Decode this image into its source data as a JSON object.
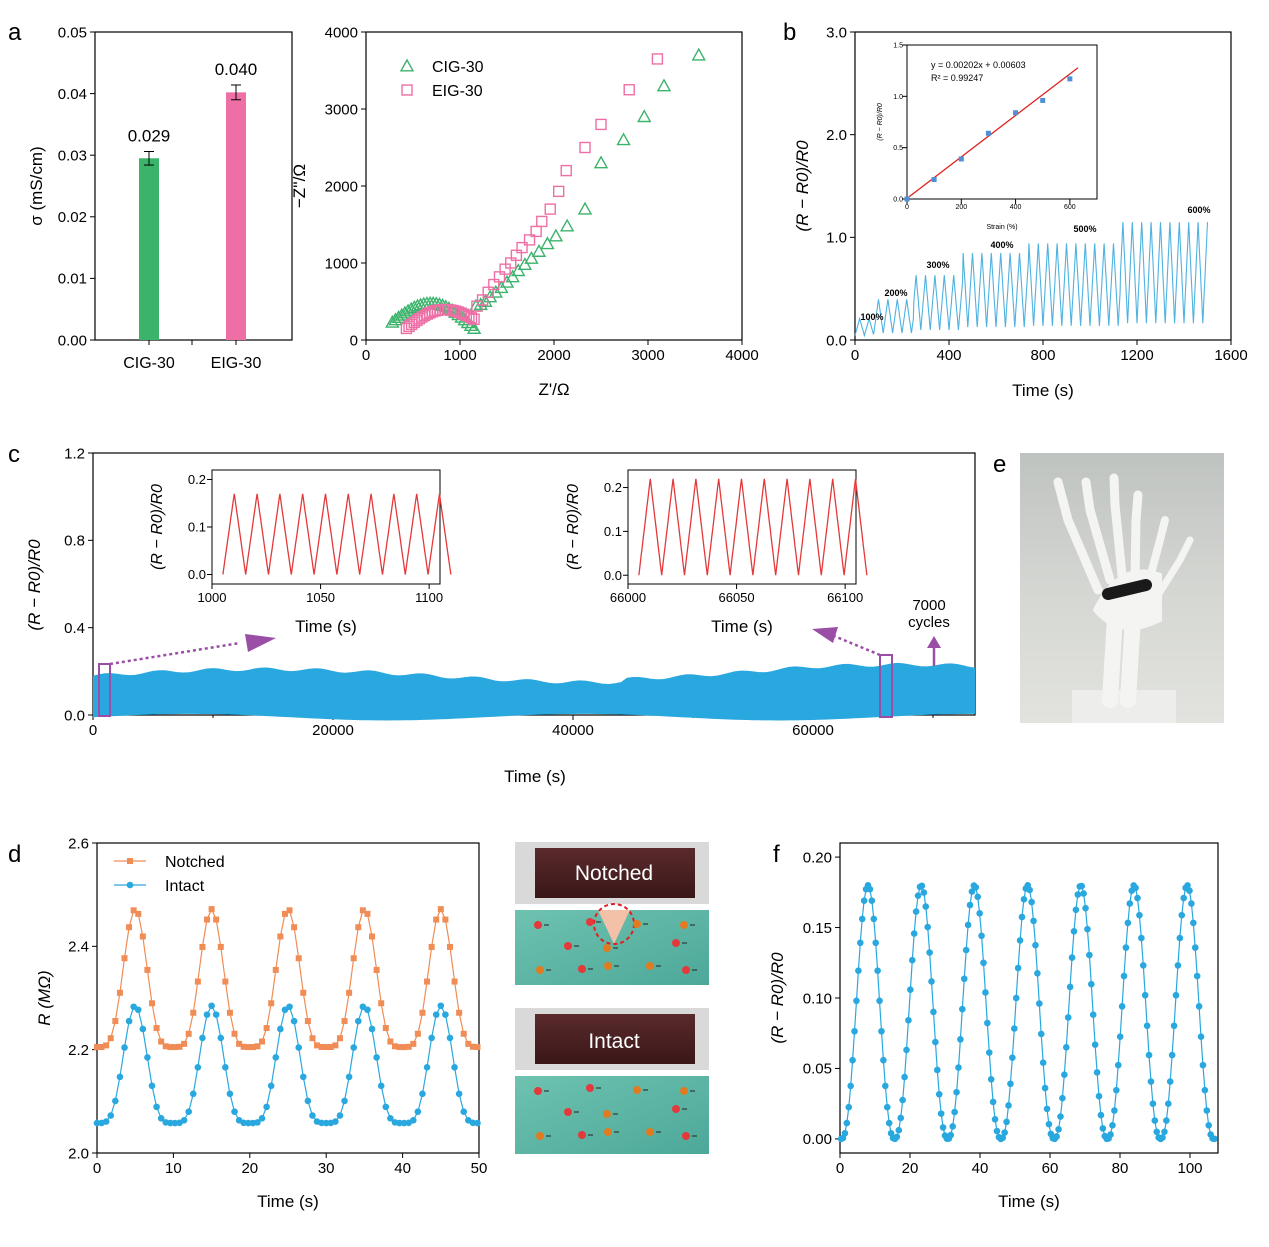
{
  "panel_letters": {
    "a": "a",
    "b": "b",
    "c": "c",
    "d": "d",
    "e": "e",
    "f": "f"
  },
  "colors": {
    "green": "#3cb36b",
    "pink": "#ee6fa6",
    "blue": "#29a8df",
    "trace_blue": "#4fb2e0",
    "orange": "#f08c55",
    "red": "#e4393a",
    "purple": "#9a4ea5",
    "inset_blue": "#4f8fd6"
  },
  "chart_data": [
    {
      "id": "a1",
      "type": "bar",
      "categories": [
        "CIG-30",
        "EIG-30"
      ],
      "values": [
        0.0295,
        0.0402
      ],
      "errors": [
        0.0011,
        0.0012
      ],
      "value_labels": [
        "0.029",
        "0.040"
      ],
      "ylabel": "σ (mS/cm)",
      "ylim": [
        0.0,
        0.05
      ],
      "yticks": [
        "0.00",
        "0.01",
        "0.02",
        "0.03",
        "0.04",
        "0.05"
      ]
    },
    {
      "id": "a2",
      "type": "scatter",
      "xlabel": "Z'/Ω",
      "ylabel": "−Z''/Ω",
      "xlim": [
        0,
        4000
      ],
      "ylim": [
        0,
        4000
      ],
      "xticks": [
        "0",
        "1000",
        "2000",
        "3000",
        "4000"
      ],
      "yticks": [
        "0",
        "1000",
        "2000",
        "3000",
        "4000"
      ],
      "legend": "top-left",
      "series": [
        {
          "name": "CIG-30",
          "marker": "triangle",
          "color": "#3cb36b",
          "x": [
            1170,
            1220,
            1270,
            1320,
            1380,
            1440,
            1500,
            1560,
            1620,
            1690,
            1760,
            1840,
            1930,
            2020,
            2140,
            2330,
            2500,
            2740,
            2960,
            3170,
            3540
          ],
          "y": [
            440,
            460,
            500,
            560,
            620,
            680,
            750,
            820,
            900,
            980,
            1060,
            1150,
            1250,
            1350,
            1480,
            1700,
            2300,
            2600,
            2900,
            3300,
            3700
          ],
          "loop_from": 280,
          "loop_to": 1150,
          "loop_height": 520
        },
        {
          "name": "EIG-30",
          "marker": "square",
          "color": "#ee6fa6",
          "x": [
            1180,
            1240,
            1300,
            1360,
            1420,
            1480,
            1540,
            1600,
            1660,
            1740,
            1810,
            1870,
            1960,
            2050,
            2130,
            2330,
            2500,
            2800,
            3100
          ],
          "y": [
            440,
            520,
            620,
            720,
            820,
            920,
            1000,
            1100,
            1200,
            1300,
            1410,
            1540,
            1700,
            1930,
            2200,
            2500,
            2800,
            3250,
            3650
          ],
          "loop_from": 430,
          "loop_to": 1150,
          "loop_height": 330
        }
      ]
    },
    {
      "id": "b",
      "type": "line",
      "xlabel": "Time (s)",
      "ylabel": "(R − R0)/R0",
      "xlim": [
        0,
        1600
      ],
      "ylim": [
        0,
        3.0
      ],
      "xticks": [
        "0",
        "400",
        "800",
        "1200",
        "1600"
      ],
      "yticks": [
        "0.0",
        "1.0",
        "2.0",
        "3.0"
      ],
      "color": "#4fb2e0",
      "segments": [
        {
          "label": "100%",
          "start": 0,
          "end": 80,
          "peak": 0.2
        },
        {
          "label": "200%",
          "start": 80,
          "end": 250,
          "peak": 0.4
        },
        {
          "label": "300%",
          "start": 250,
          "end": 460,
          "peak": 0.65
        },
        {
          "label": "400%",
          "start": 460,
          "end": 740,
          "peak": 0.88
        },
        {
          "label": "500%",
          "start": 740,
          "end": 1130,
          "peak": 0.98
        },
        {
          "label": "600%",
          "start": 1130,
          "end": 1500,
          "peak": 1.2
        }
      ],
      "cycle_period": 40,
      "inset": {
        "type": "scatter+fit",
        "xlabel": "Strain (%)",
        "ylabel": "(R − R0)/R0",
        "xlim": [
          0,
          700
        ],
        "ylim": [
          0,
          1.5
        ],
        "xticks": [
          "0",
          "200",
          "400",
          "600"
        ],
        "yticks": [
          "0.0",
          "0.5",
          "1.0",
          "1.5"
        ],
        "x": [
          0,
          100,
          200,
          300,
          400,
          500,
          600
        ],
        "y": [
          0.0,
          0.19,
          0.39,
          0.64,
          0.84,
          0.96,
          1.17
        ],
        "fit_equation": "y = 0.00202x + 0.00603",
        "r_squared": "R² = 0.99247",
        "slope": 0.00202,
        "intercept": 0.00603
      }
    },
    {
      "id": "c",
      "type": "area",
      "xlabel": "Time (s)",
      "ylabel": "(R − R0)/R0",
      "xlim": [
        0,
        73500
      ],
      "ylim": [
        0,
        1.2
      ],
      "xticks": [
        "0",
        "20000",
        "40000",
        "60000"
      ],
      "yticks": [
        "0.0",
        "0.4",
        "0.8",
        "1.2"
      ],
      "color": "#29a8df",
      "band_lower": [
        0.0,
        0.0,
        0.0
      ],
      "band_upper": [
        0.18,
        0.21,
        0.24
      ],
      "cycles_label": "7000",
      "cycles_unit": "cycles",
      "insets": [
        {
          "xlabel": "Time (s)",
          "ylabel": "(R − R0)/R0",
          "xlim": [
            1000,
            1105
          ],
          "ylim": [
            -0.02,
            0.22
          ],
          "xticks": [
            "1000",
            "1050",
            "1100"
          ],
          "yticks": [
            "0.0",
            "0.1",
            "0.2"
          ],
          "period": 10.5,
          "start": 1005,
          "cycles": 10,
          "peak": 0.17
        },
        {
          "xlabel": "Time (s)",
          "ylabel": "(R − R0)/R0",
          "xlim": [
            66000,
            66105
          ],
          "ylim": [
            -0.02,
            0.24
          ],
          "xticks": [
            "66000",
            "66050",
            "66100"
          ],
          "yticks": [
            "0.0",
            "0.1",
            "0.2"
          ],
          "period": 10.5,
          "start": 66005,
          "cycles": 10,
          "peak": 0.22
        }
      ]
    },
    {
      "id": "d",
      "type": "line",
      "xlabel": "Time (s)",
      "ylabel": "R (MΩ)",
      "xlim": [
        0,
        50
      ],
      "ylim": [
        2.0,
        2.6
      ],
      "xticks": [
        "0",
        "10",
        "20",
        "30",
        "40",
        "50"
      ],
      "yticks": [
        "2.0",
        "2.2",
        "2.4",
        "2.6"
      ],
      "legend": "top-left",
      "series": [
        {
          "name": "Notched",
          "marker": "square",
          "color": "#f08c55",
          "base": 2.205,
          "peak": 2.472,
          "period": 10,
          "phase": 5
        },
        {
          "name": "Intact",
          "marker": "circle",
          "color": "#29a8df",
          "base": 2.058,
          "peak": 2.285,
          "period": 10,
          "phase": 5
        }
      ]
    },
    {
      "id": "f",
      "type": "line",
      "xlabel": "Time (s)",
      "ylabel": "(R − R0)/R0",
      "xlim": [
        0,
        108
      ],
      "ylim": [
        -0.01,
        0.21
      ],
      "xticks": [
        "0",
        "20",
        "40",
        "60",
        "80",
        "100"
      ],
      "yticks": [
        "0.00",
        "0.05",
        "0.10",
        "0.15",
        "0.20"
      ],
      "marker": "circle",
      "color": "#29a8df",
      "base": 0.0,
      "peak": 0.18,
      "period": 15.2,
      "phase": 8,
      "cycles": 7
    }
  ],
  "photo_labels": {
    "notched": "Notched",
    "intact": "Intact"
  }
}
